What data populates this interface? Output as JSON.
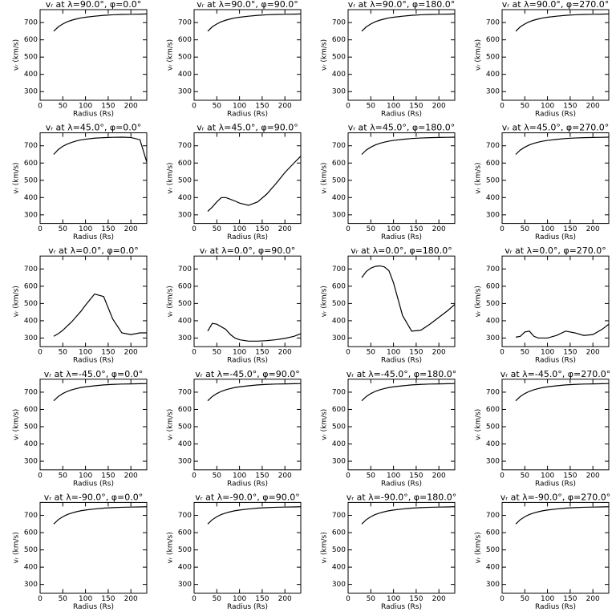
{
  "chart_data": [
    {
      "type": "line",
      "title": "vᵣ at λ=90.0°, φ=0.0°",
      "xlabel": "Radius (Rs)",
      "ylabel": "vᵣ (km/s)",
      "x": [
        30,
        40,
        50,
        60,
        70,
        80,
        90,
        100,
        120,
        140,
        160,
        180,
        200,
        220,
        235
      ],
      "values": [
        650,
        675,
        692,
        705,
        714,
        721,
        727,
        731,
        737,
        742,
        745,
        747,
        748,
        749,
        750
      ],
      "xlim": [
        0,
        235
      ],
      "ylim": [
        250,
        775
      ],
      "xticks": [
        0,
        50,
        100,
        150,
        200
      ],
      "yticks": [
        300,
        400,
        500,
        600,
        700
      ],
      "color": "#000000"
    },
    {
      "type": "line",
      "title": "vᵣ at λ=90.0°, φ=90.0°",
      "xlabel": "Radius (Rs)",
      "ylabel": "vᵣ (km/s)",
      "x": [
        30,
        40,
        50,
        60,
        70,
        80,
        90,
        100,
        120,
        140,
        160,
        180,
        200,
        220,
        235
      ],
      "values": [
        650,
        675,
        692,
        705,
        714,
        721,
        727,
        731,
        737,
        742,
        745,
        747,
        748,
        749,
        750
      ],
      "xlim": [
        0,
        235
      ],
      "ylim": [
        250,
        775
      ],
      "xticks": [
        0,
        50,
        100,
        150,
        200
      ],
      "yticks": [
        300,
        400,
        500,
        600,
        700
      ],
      "color": "#000000"
    },
    {
      "type": "line",
      "title": "vᵣ at λ=90.0°, φ=180.0°",
      "xlabel": "Radius (Rs)",
      "ylabel": "vᵣ (km/s)",
      "x": [
        30,
        40,
        50,
        60,
        70,
        80,
        90,
        100,
        120,
        140,
        160,
        180,
        200,
        220,
        235
      ],
      "values": [
        650,
        675,
        692,
        705,
        714,
        721,
        727,
        731,
        737,
        742,
        745,
        747,
        748,
        749,
        750
      ],
      "xlim": [
        0,
        235
      ],
      "ylim": [
        250,
        775
      ],
      "xticks": [
        0,
        50,
        100,
        150,
        200
      ],
      "yticks": [
        300,
        400,
        500,
        600,
        700
      ],
      "color": "#000000"
    },
    {
      "type": "line",
      "title": "vᵣ at λ=90.0°, φ=270.0°",
      "xlabel": "Radius (Rs)",
      "ylabel": "vᵣ (km/s)",
      "x": [
        30,
        40,
        50,
        60,
        70,
        80,
        90,
        100,
        120,
        140,
        160,
        180,
        200,
        220,
        235
      ],
      "values": [
        650,
        675,
        692,
        705,
        714,
        721,
        727,
        731,
        737,
        742,
        745,
        747,
        748,
        749,
        750
      ],
      "xlim": [
        0,
        235
      ],
      "ylim": [
        250,
        775
      ],
      "xticks": [
        0,
        50,
        100,
        150,
        200
      ],
      "yticks": [
        300,
        400,
        500,
        600,
        700
      ],
      "color": "#000000"
    },
    {
      "type": "line",
      "title": "vᵣ at λ=45.0°, φ=0.0°",
      "xlabel": "Radius (Rs)",
      "ylabel": "vᵣ (km/s)",
      "x": [
        30,
        40,
        50,
        60,
        70,
        80,
        90,
        100,
        120,
        140,
        160,
        180,
        200,
        220,
        235
      ],
      "values": [
        650,
        678,
        697,
        710,
        720,
        728,
        734,
        738,
        744,
        747,
        749,
        750,
        748,
        735,
        605
      ],
      "xlim": [
        0,
        235
      ],
      "ylim": [
        250,
        775
      ],
      "xticks": [
        0,
        50,
        100,
        150,
        200
      ],
      "yticks": [
        300,
        400,
        500,
        600,
        700
      ],
      "color": "#000000"
    },
    {
      "type": "line",
      "title": "vᵣ at λ=45.0°, φ=90.0°",
      "xlabel": "Radius (Rs)",
      "ylabel": "vᵣ (km/s)",
      "x": [
        30,
        40,
        50,
        60,
        70,
        80,
        90,
        100,
        120,
        140,
        160,
        180,
        200,
        220,
        235
      ],
      "values": [
        320,
        345,
        375,
        400,
        400,
        390,
        380,
        368,
        355,
        375,
        420,
        480,
        545,
        600,
        640
      ],
      "xlim": [
        0,
        235
      ],
      "ylim": [
        250,
        775
      ],
      "xticks": [
        0,
        50,
        100,
        150,
        200
      ],
      "yticks": [
        300,
        400,
        500,
        600,
        700
      ],
      "color": "#000000"
    },
    {
      "type": "line",
      "title": "vᵣ at λ=45.0°, φ=180.0°",
      "xlabel": "Radius (Rs)",
      "ylabel": "vᵣ (km/s)",
      "x": [
        30,
        40,
        50,
        60,
        70,
        80,
        90,
        100,
        120,
        140,
        160,
        180,
        200,
        220,
        235
      ],
      "values": [
        650,
        675,
        692,
        705,
        714,
        721,
        727,
        731,
        737,
        742,
        745,
        747,
        748,
        749,
        750
      ],
      "xlim": [
        0,
        235
      ],
      "ylim": [
        250,
        775
      ],
      "xticks": [
        0,
        50,
        100,
        150,
        200
      ],
      "yticks": [
        300,
        400,
        500,
        600,
        700
      ],
      "color": "#000000"
    },
    {
      "type": "line",
      "title": "vᵣ at λ=45.0°, φ=270.0°",
      "xlabel": "Radius (Rs)",
      "ylabel": "vᵣ (km/s)",
      "x": [
        30,
        40,
        50,
        60,
        70,
        80,
        90,
        100,
        120,
        140,
        160,
        180,
        200,
        220,
        235
      ],
      "values": [
        650,
        675,
        692,
        705,
        714,
        721,
        727,
        731,
        737,
        742,
        745,
        747,
        748,
        749,
        750
      ],
      "xlim": [
        0,
        235
      ],
      "ylim": [
        250,
        775
      ],
      "xticks": [
        0,
        50,
        100,
        150,
        200
      ],
      "yticks": [
        300,
        400,
        500,
        600,
        700
      ],
      "color": "#000000"
    },
    {
      "type": "line",
      "title": "vᵣ at λ=0.0°, φ=0.0°",
      "xlabel": "Radius (Rs)",
      "ylabel": "vᵣ (km/s)",
      "x": [
        30,
        40,
        50,
        60,
        70,
        80,
        90,
        100,
        120,
        140,
        160,
        180,
        200,
        220,
        235
      ],
      "values": [
        310,
        325,
        345,
        370,
        395,
        425,
        455,
        490,
        555,
        540,
        410,
        330,
        320,
        330,
        330
      ],
      "xlim": [
        0,
        235
      ],
      "ylim": [
        250,
        775
      ],
      "xticks": [
        0,
        50,
        100,
        150,
        200
      ],
      "yticks": [
        300,
        400,
        500,
        600,
        700
      ],
      "color": "#000000"
    },
    {
      "type": "line",
      "title": "vᵣ at λ=0.0°, φ=90.0°",
      "xlabel": "Radius (Rs)",
      "ylabel": "vᵣ (km/s)",
      "x": [
        30,
        40,
        50,
        60,
        70,
        80,
        90,
        100,
        120,
        140,
        160,
        180,
        200,
        220,
        235
      ],
      "values": [
        340,
        385,
        380,
        365,
        350,
        320,
        300,
        290,
        282,
        282,
        285,
        290,
        298,
        310,
        325
      ],
      "xlim": [
        0,
        235
      ],
      "ylim": [
        250,
        775
      ],
      "xticks": [
        0,
        50,
        100,
        150,
        200
      ],
      "yticks": [
        300,
        400,
        500,
        600,
        700
      ],
      "color": "#000000"
    },
    {
      "type": "line",
      "title": "vᵣ at λ=0.0°, φ=180.0°",
      "xlabel": "Radius (Rs)",
      "ylabel": "vᵣ (km/s)",
      "x": [
        30,
        40,
        50,
        60,
        70,
        80,
        90,
        100,
        120,
        140,
        160,
        180,
        200,
        220,
        235
      ],
      "values": [
        650,
        685,
        705,
        715,
        718,
        712,
        690,
        620,
        430,
        340,
        345,
        380,
        420,
        460,
        495
      ],
      "xlim": [
        0,
        235
      ],
      "ylim": [
        250,
        775
      ],
      "xticks": [
        0,
        50,
        100,
        150,
        200
      ],
      "yticks": [
        300,
        400,
        500,
        600,
        700
      ],
      "color": "#000000"
    },
    {
      "type": "line",
      "title": "vᵣ at λ=0.0°, φ=270.0°",
      "xlabel": "Radius (Rs)",
      "ylabel": "vᵣ (km/s)",
      "x": [
        30,
        40,
        50,
        60,
        70,
        80,
        90,
        100,
        120,
        140,
        160,
        180,
        200,
        220,
        235
      ],
      "values": [
        305,
        310,
        335,
        340,
        310,
        300,
        300,
        300,
        315,
        340,
        330,
        315,
        320,
        350,
        380
      ],
      "xlim": [
        0,
        235
      ],
      "ylim": [
        250,
        775
      ],
      "xticks": [
        0,
        50,
        100,
        150,
        200
      ],
      "yticks": [
        300,
        400,
        500,
        600,
        700
      ],
      "color": "#000000"
    },
    {
      "type": "line",
      "title": "vᵣ at λ=-45.0°, φ=0.0°",
      "xlabel": "Radius (Rs)",
      "ylabel": "vᵣ (km/s)",
      "x": [
        30,
        40,
        50,
        60,
        70,
        80,
        90,
        100,
        120,
        140,
        160,
        180,
        200,
        220,
        235
      ],
      "values": [
        650,
        675,
        692,
        705,
        714,
        721,
        727,
        731,
        737,
        742,
        745,
        747,
        748,
        749,
        750
      ],
      "xlim": [
        0,
        235
      ],
      "ylim": [
        250,
        775
      ],
      "xticks": [
        0,
        50,
        100,
        150,
        200
      ],
      "yticks": [
        300,
        400,
        500,
        600,
        700
      ],
      "color": "#000000"
    },
    {
      "type": "line",
      "title": "vᵣ at λ=-45.0°, φ=90.0°",
      "xlabel": "Radius (Rs)",
      "ylabel": "vᵣ (km/s)",
      "x": [
        30,
        40,
        50,
        60,
        70,
        80,
        90,
        100,
        120,
        140,
        160,
        180,
        200,
        220,
        235
      ],
      "values": [
        650,
        675,
        692,
        705,
        714,
        721,
        727,
        731,
        737,
        742,
        745,
        747,
        748,
        749,
        750
      ],
      "xlim": [
        0,
        235
      ],
      "ylim": [
        250,
        775
      ],
      "xticks": [
        0,
        50,
        100,
        150,
        200
      ],
      "yticks": [
        300,
        400,
        500,
        600,
        700
      ],
      "color": "#000000"
    },
    {
      "type": "line",
      "title": "vᵣ at λ=-45.0°, φ=180.0°",
      "xlabel": "Radius (Rs)",
      "ylabel": "vᵣ (km/s)",
      "x": [
        30,
        40,
        50,
        60,
        70,
        80,
        90,
        100,
        120,
        140,
        160,
        180,
        200,
        220,
        235
      ],
      "values": [
        650,
        675,
        692,
        705,
        714,
        721,
        727,
        731,
        737,
        742,
        745,
        747,
        748,
        749,
        750
      ],
      "xlim": [
        0,
        235
      ],
      "ylim": [
        250,
        775
      ],
      "xticks": [
        0,
        50,
        100,
        150,
        200
      ],
      "yticks": [
        300,
        400,
        500,
        600,
        700
      ],
      "color": "#000000"
    },
    {
      "type": "line",
      "title": "vᵣ at λ=-45.0°, φ=270.0°",
      "xlabel": "Radius (Rs)",
      "ylabel": "vᵣ (km/s)",
      "x": [
        30,
        40,
        50,
        60,
        70,
        80,
        90,
        100,
        120,
        140,
        160,
        180,
        200,
        220,
        235
      ],
      "values": [
        650,
        675,
        692,
        705,
        714,
        721,
        727,
        731,
        737,
        742,
        745,
        747,
        748,
        749,
        750
      ],
      "xlim": [
        0,
        235
      ],
      "ylim": [
        250,
        775
      ],
      "xticks": [
        0,
        50,
        100,
        150,
        200
      ],
      "yticks": [
        300,
        400,
        500,
        600,
        700
      ],
      "color": "#000000"
    },
    {
      "type": "line",
      "title": "vᵣ at λ=-90.0°, φ=0.0°",
      "xlabel": "Radius (Rs)",
      "ylabel": "vᵣ (km/s)",
      "x": [
        30,
        40,
        50,
        60,
        70,
        80,
        90,
        100,
        120,
        140,
        160,
        180,
        200,
        220,
        235
      ],
      "values": [
        650,
        675,
        692,
        705,
        714,
        721,
        727,
        731,
        737,
        742,
        745,
        747,
        748,
        749,
        750
      ],
      "xlim": [
        0,
        235
      ],
      "ylim": [
        250,
        775
      ],
      "xticks": [
        0,
        50,
        100,
        150,
        200
      ],
      "yticks": [
        300,
        400,
        500,
        600,
        700
      ],
      "color": "#000000"
    },
    {
      "type": "line",
      "title": "vᵣ at λ=-90.0°, φ=90.0°",
      "xlabel": "Radius (Rs)",
      "ylabel": "vᵣ (km/s)",
      "x": [
        30,
        40,
        50,
        60,
        70,
        80,
        90,
        100,
        120,
        140,
        160,
        180,
        200,
        220,
        235
      ],
      "values": [
        650,
        675,
        692,
        705,
        714,
        721,
        727,
        731,
        737,
        742,
        745,
        747,
        748,
        749,
        750
      ],
      "xlim": [
        0,
        235
      ],
      "ylim": [
        250,
        775
      ],
      "xticks": [
        0,
        50,
        100,
        150,
        200
      ],
      "yticks": [
        300,
        400,
        500,
        600,
        700
      ],
      "color": "#000000"
    },
    {
      "type": "line",
      "title": "vᵣ at λ=-90.0°, φ=180.0°",
      "xlabel": "Radius (Rs)",
      "ylabel": "vᵣ (km/s)",
      "x": [
        30,
        40,
        50,
        60,
        70,
        80,
        90,
        100,
        120,
        140,
        160,
        180,
        200,
        220,
        235
      ],
      "values": [
        650,
        675,
        692,
        705,
        714,
        721,
        727,
        731,
        737,
        742,
        745,
        747,
        748,
        749,
        750
      ],
      "xlim": [
        0,
        235
      ],
      "ylim": [
        250,
        775
      ],
      "xticks": [
        0,
        50,
        100,
        150,
        200
      ],
      "yticks": [
        300,
        400,
        500,
        600,
        700
      ],
      "color": "#000000"
    },
    {
      "type": "line",
      "title": "vᵣ at λ=-90.0°, φ=270.0°",
      "xlabel": "Radius (Rs)",
      "ylabel": "vᵣ (km/s)",
      "x": [
        30,
        40,
        50,
        60,
        70,
        80,
        90,
        100,
        120,
        140,
        160,
        180,
        200,
        220,
        235
      ],
      "values": [
        650,
        675,
        692,
        705,
        714,
        721,
        727,
        731,
        737,
        742,
        745,
        747,
        748,
        749,
        750
      ],
      "xlim": [
        0,
        235
      ],
      "ylim": [
        250,
        775
      ],
      "xticks": [
        0,
        50,
        100,
        150,
        200
      ],
      "yticks": [
        300,
        400,
        500,
        600,
        700
      ],
      "color": "#000000"
    }
  ]
}
